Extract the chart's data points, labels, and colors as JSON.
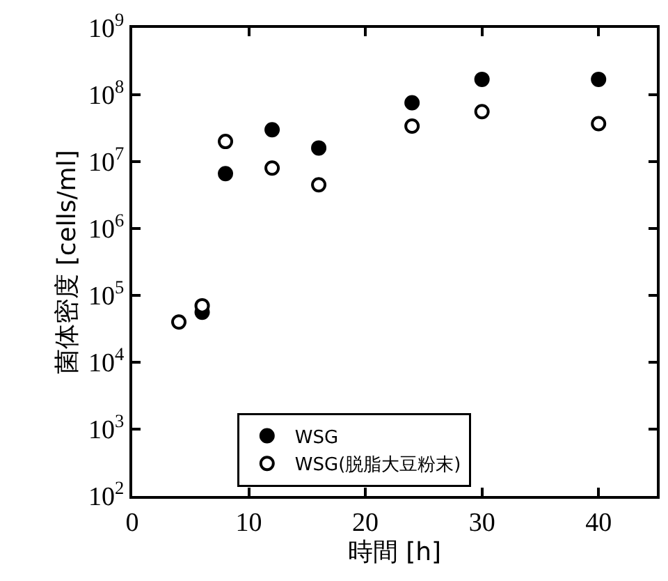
{
  "chart_data": {
    "type": "scatter",
    "xlabel": "時間 [h]",
    "ylabel": "菌体密度 [cells/ml]",
    "xlim": [
      0,
      45
    ],
    "xticks": [
      0,
      10,
      20,
      30,
      40
    ],
    "ylim": [
      100,
      1000000000
    ],
    "log": "y",
    "yticks": [
      {
        "value": 100,
        "label": "10$^{2}$"
      },
      {
        "value": 1000,
        "label": "10$^{3}$"
      },
      {
        "value": 10000,
        "label": "10$^{4}$"
      },
      {
        "value": 100000,
        "label": "10$^{5}$"
      },
      {
        "value": 1000000,
        "label": "10$^{6}$"
      },
      {
        "value": 10000000,
        "label": "10$^{7}$"
      },
      {
        "value": 100000000,
        "label": "10$^{8}$"
      },
      {
        "value": 1000000000,
        "label": "10$^{9}$"
      }
    ],
    "legend": "bottom",
    "marker": "circle",
    "series": [
      {
        "name": "WSG",
        "color": "#000000",
        "x": [
          6,
          8,
          12,
          16,
          24,
          30,
          40
        ],
        "values": [
          56000,
          6600000,
          30000000,
          16000000,
          76000000,
          170000000,
          170000000
        ]
      },
      {
        "name": "WSG(脱脂大豆粉末)",
        "color": "#ffffff",
        "x": [
          4,
          6,
          8,
          12,
          16,
          24,
          30,
          40
        ],
        "values": [
          40000,
          70000,
          20000000,
          8000000,
          4500000,
          34000000,
          56000000,
          37000000
        ]
      }
    ]
  }
}
